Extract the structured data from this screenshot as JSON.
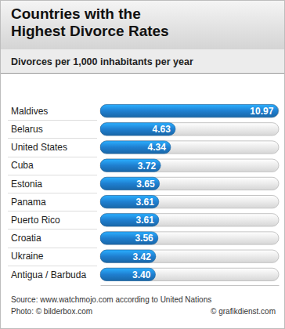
{
  "chart_data": {
    "type": "bar",
    "orientation": "horizontal",
    "title": "Countries with the Highest Divorce Rates",
    "subtitle": "Divorces per 1,000 inhabitants per year",
    "categories": [
      "Maldives",
      "Belarus",
      "United States",
      "Cuba",
      "Estonia",
      "Panama",
      "Puerto Rico",
      "Croatia",
      "Ukraine",
      "Antigua / Barbuda"
    ],
    "values": [
      10.97,
      4.63,
      4.34,
      3.72,
      3.65,
      3.61,
      3.61,
      3.56,
      3.42,
      3.4
    ],
    "value_labels": [
      "10.97",
      "4.63",
      "4.34",
      "3.72",
      "3.65",
      "3.61",
      "3.61",
      "3.56",
      "3.42",
      "3.40"
    ],
    "data_labels": true,
    "color": "#1f7fd0",
    "xlim": [
      0,
      11
    ],
    "tick_labels": false,
    "grid": false,
    "annotations": [
      "Source: www.watchmojo.com according to United Nations",
      "Photo: © bilderbox.com",
      "© grafikdienst.com"
    ]
  }
}
